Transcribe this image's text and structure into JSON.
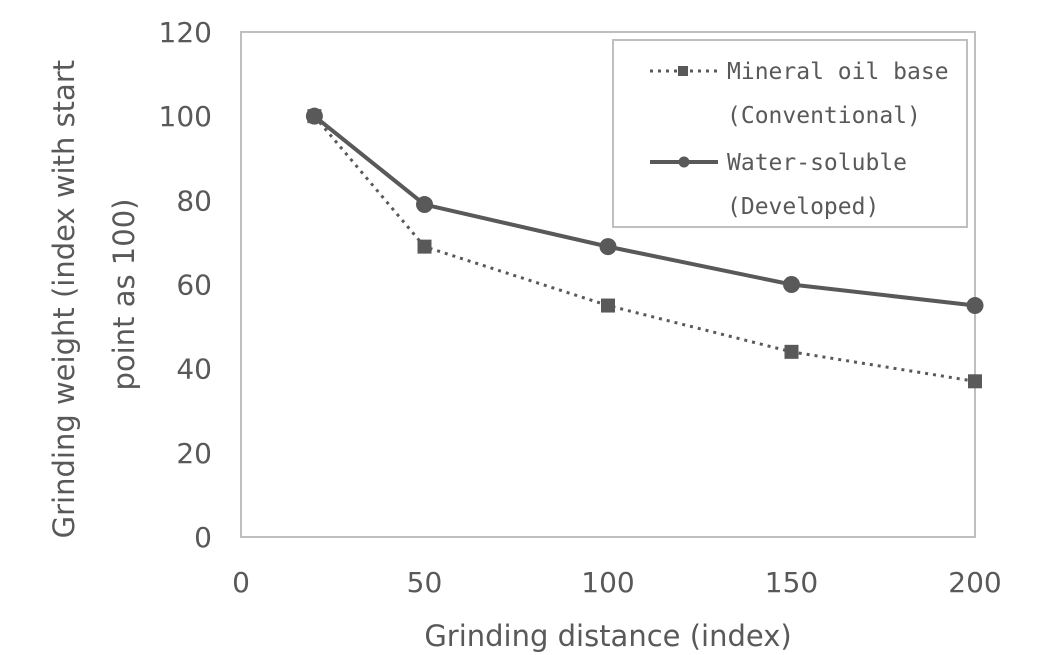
{
  "chart_data": {
    "type": "line",
    "xlabel": "Grinding distance (index)",
    "ylabel_lines": [
      "Grinding weight (index with start",
      "point as 100)"
    ],
    "xlim": [
      0,
      200
    ],
    "ylim": [
      0,
      120
    ],
    "x_ticks": [
      0,
      50,
      100,
      150,
      200
    ],
    "y_ticks": [
      0,
      20,
      40,
      60,
      80,
      100,
      120
    ],
    "grid": false,
    "legend_position": "top-right",
    "series": [
      {
        "name_lines": [
          "Mineral oil base",
          "(Conventional)"
        ],
        "line_style": "dotted",
        "marker": "square",
        "color": "#595959",
        "x": [
          20,
          50,
          100,
          150,
          200
        ],
        "y": [
          100,
          69,
          55,
          44,
          37
        ]
      },
      {
        "name_lines": [
          "Water-soluble",
          "(Developed)"
        ],
        "line_style": "solid",
        "marker": "circle",
        "color": "#595959",
        "x": [
          20,
          50,
          100,
          150,
          200
        ],
        "y": [
          100,
          79,
          69,
          60,
          55
        ]
      }
    ]
  }
}
